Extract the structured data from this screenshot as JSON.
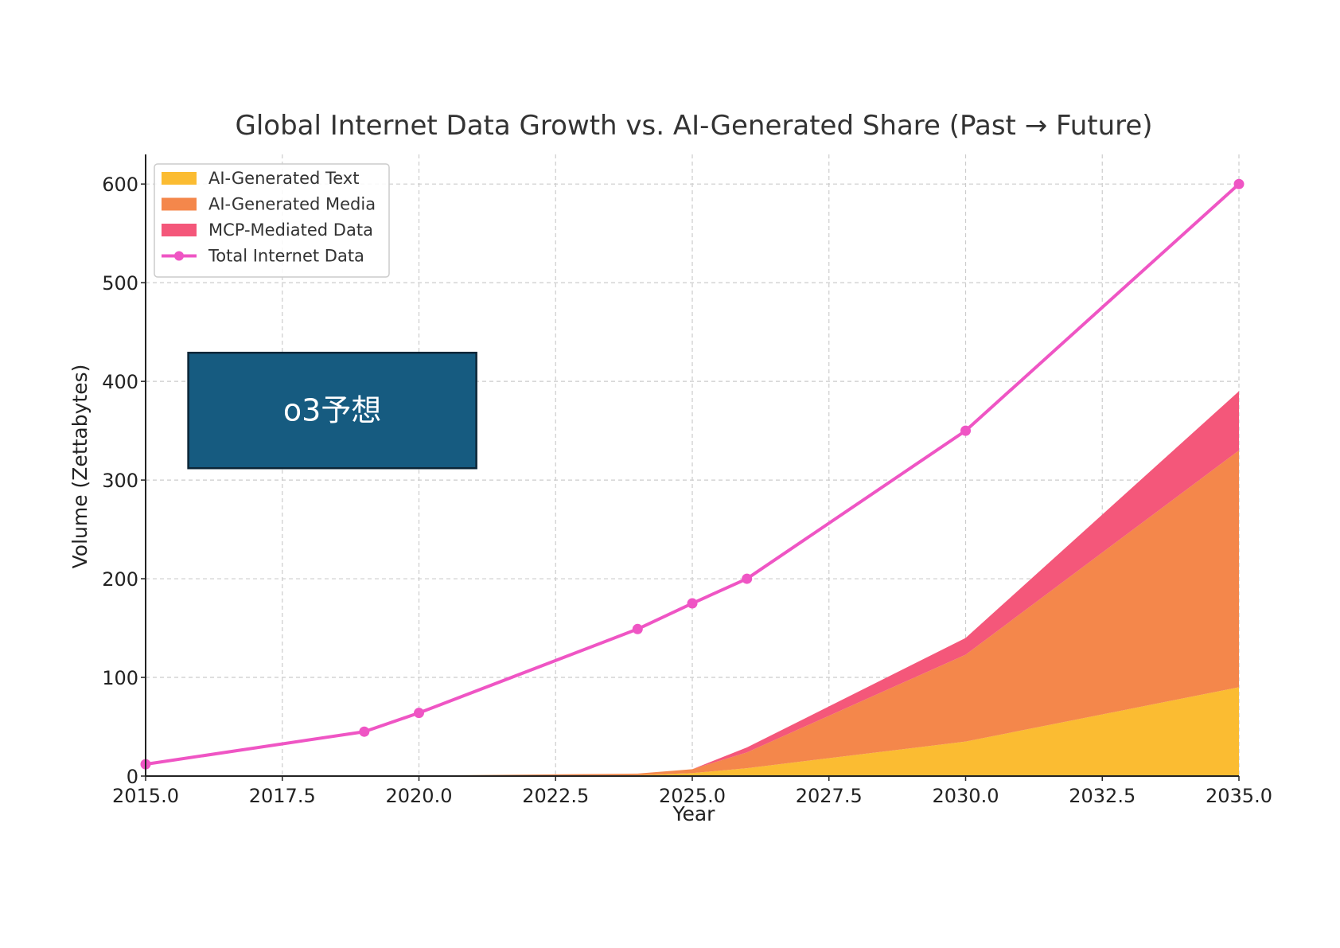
{
  "chart_data": {
    "type": "area",
    "title": "Global Internet Data Growth vs. AI-Generated Share (Past → Future)",
    "xlabel": "Year",
    "ylabel": "Volume (Zettabytes)",
    "xlim": [
      2015,
      2035
    ],
    "ylim": [
      0,
      630
    ],
    "x_ticks": [
      "2015.0",
      "2017.5",
      "2020.0",
      "2022.5",
      "2025.0",
      "2027.5",
      "2030.0",
      "2032.5",
      "2035.0"
    ],
    "y_ticks": [
      "0",
      "100",
      "200",
      "300",
      "400",
      "500",
      "600"
    ],
    "grid": true,
    "legend_position": "top-left",
    "stacked_areas": {
      "x": [
        2020,
        2024,
        2025,
        2026,
        2030,
        2035
      ],
      "series": [
        {
          "name": "AI-Generated Text",
          "color": "#fbbc32",
          "values": [
            0.2,
            1,
            3,
            8,
            35,
            90
          ]
        },
        {
          "name": "AI-Generated Media",
          "color": "#f4874b",
          "values": [
            0.3,
            1.5,
            4,
            16,
            88,
            240
          ]
        },
        {
          "name": "MCP-Mediated Data",
          "color": "#f4577a",
          "values": [
            0,
            0,
            0,
            5,
            17,
            60
          ]
        }
      ]
    },
    "line": {
      "name": "Total Internet Data",
      "color": "#ef55c4",
      "x": [
        2015,
        2019,
        2020,
        2024,
        2025,
        2026,
        2030,
        2035
      ],
      "y": [
        12,
        45,
        64,
        149,
        175,
        200,
        350,
        600
      ]
    },
    "annotation": {
      "text": "o3予想",
      "bg_color": "#165b80",
      "x_range": [
        2015.78,
        2021.05
      ],
      "y_range": [
        312,
        429
      ]
    }
  }
}
